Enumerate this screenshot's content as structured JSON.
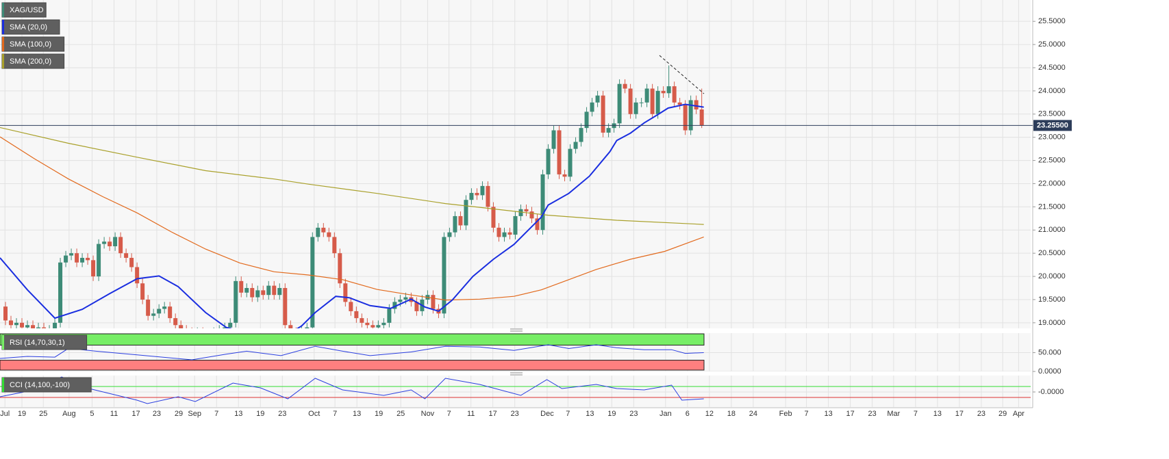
{
  "chart_data": [
    {
      "type": "candlestick",
      "name": "XAG/USD",
      "up_color": "#3d8b77",
      "down_color": "#d65b4a",
      "grid": true,
      "xlim": [
        0,
        188
      ],
      "ylim": [
        18.88,
        25.96
      ],
      "xticks": [
        {
          "value": 0.9,
          "label": "Jul"
        },
        {
          "value": 4,
          "label": "19"
        },
        {
          "value": 7.9,
          "label": "25"
        },
        {
          "value": 12.6,
          "label": "Aug"
        },
        {
          "value": 16.8,
          "label": "5"
        },
        {
          "value": 20.8,
          "label": "11"
        },
        {
          "value": 24.8,
          "label": "17"
        },
        {
          "value": 28.6,
          "label": "23"
        },
        {
          "value": 32.6,
          "label": "29"
        },
        {
          "value": 35.5,
          "label": "Sep"
        },
        {
          "value": 39.5,
          "label": "7"
        },
        {
          "value": 43.5,
          "label": "13"
        },
        {
          "value": 47.5,
          "label": "19"
        },
        {
          "value": 51.5,
          "label": "23"
        },
        {
          "value": 57.3,
          "label": "Oct"
        },
        {
          "value": 61.1,
          "label": "7"
        },
        {
          "value": 65.1,
          "label": "13"
        },
        {
          "value": 69.1,
          "label": "19"
        },
        {
          "value": 73.1,
          "label": "25"
        },
        {
          "value": 78,
          "label": "Nov"
        },
        {
          "value": 81.9,
          "label": "7"
        },
        {
          "value": 85.9,
          "label": "11"
        },
        {
          "value": 89.9,
          "label": "17"
        },
        {
          "value": 93.9,
          "label": "23"
        },
        {
          "value": 99.8,
          "label": "Dec"
        },
        {
          "value": 103.6,
          "label": "7"
        },
        {
          "value": 107.6,
          "label": "13"
        },
        {
          "value": 111.6,
          "label": "19"
        },
        {
          "value": 115.6,
          "label": "23"
        },
        {
          "value": 121.4,
          "label": "Jan"
        },
        {
          "value": 125.4,
          "label": "6"
        },
        {
          "value": 129.4,
          "label": "12"
        },
        {
          "value": 133.4,
          "label": "18"
        },
        {
          "value": 137.4,
          "label": "24"
        },
        {
          "value": 143.3,
          "label": "Feb"
        },
        {
          "value": 147.1,
          "label": "7"
        },
        {
          "value": 151.1,
          "label": "13"
        },
        {
          "value": 155.1,
          "label": "17"
        },
        {
          "value": 159.1,
          "label": "23"
        },
        {
          "value": 163,
          "label": "Mar"
        },
        {
          "value": 167,
          "label": "7"
        },
        {
          "value": 171,
          "label": "13"
        },
        {
          "value": 175,
          "label": "17"
        },
        {
          "value": 179,
          "label": "23"
        },
        {
          "value": 182.9,
          "label": "29"
        },
        {
          "value": 185.8,
          "label": "Apr"
        }
      ],
      "yticks": [
        {
          "value": 19,
          "label": "19.0000"
        },
        {
          "value": 19.5,
          "label": "19.5000"
        },
        {
          "value": 20,
          "label": "20.0000"
        },
        {
          "value": 20.5,
          "label": "20.5000"
        },
        {
          "value": 21,
          "label": "21.0000"
        },
        {
          "value": 21.5,
          "label": "21.5000"
        },
        {
          "value": 22,
          "label": "22.0000"
        },
        {
          "value": 22.5,
          "label": "22.5000"
        },
        {
          "value": 23,
          "label": "23.0000"
        },
        {
          "value": 23.5,
          "label": "23.5000"
        },
        {
          "value": 24,
          "label": "24.0000"
        },
        {
          "value": 24.5,
          "label": "24.5000"
        },
        {
          "value": 25,
          "label": "25.0000"
        },
        {
          "value": 25.5,
          "label": "25.5000"
        }
      ],
      "last_price": {
        "value": 23.255,
        "label": "23.25500"
      },
      "x": [
        1,
        2,
        3,
        4,
        5,
        6,
        7,
        8,
        9,
        10,
        11,
        12,
        13,
        14,
        15,
        16,
        17,
        18,
        19,
        20,
        21,
        22,
        23,
        24,
        25,
        26,
        27,
        28,
        29,
        30,
        31,
        32,
        33,
        34,
        35,
        36,
        37,
        38,
        39,
        40,
        41,
        42,
        43,
        44,
        45,
        46,
        47,
        48,
        49,
        50,
        51,
        52,
        53,
        54,
        55,
        56,
        57,
        58,
        59,
        60,
        61,
        62,
        63,
        64,
        65,
        66,
        67,
        68,
        69,
        70,
        71,
        72,
        73,
        74,
        75,
        76,
        77,
        78,
        79,
        80,
        81,
        82,
        83,
        84,
        85,
        86,
        87,
        88,
        89,
        90,
        91,
        92,
        93,
        94,
        95,
        96,
        97,
        98,
        99,
        100,
        101,
        102,
        103,
        104,
        105,
        106,
        107,
        108,
        109,
        110,
        111,
        112,
        113,
        114,
        115,
        116,
        117,
        118,
        119,
        120,
        121,
        122,
        123,
        124,
        125,
        126,
        127,
        128
      ],
      "open": [
        19.35,
        19.05,
        18.95,
        19.0,
        18.9,
        18.95,
        18.85,
        18.9,
        18.8,
        18.85,
        19.0,
        20.3,
        20.45,
        20.5,
        20.3,
        20.4,
        20.35,
        20.0,
        20.7,
        20.75,
        20.65,
        20.85,
        20.5,
        20.4,
        20.2,
        19.85,
        19.5,
        19.15,
        19.2,
        19.3,
        19.35,
        19.1,
        18.95,
        18.85,
        18.8,
        18.75,
        18.8,
        18.7,
        18.75,
        18.8,
        18.85,
        18.9,
        19.0,
        19.9,
        19.65,
        19.75,
        19.55,
        19.7,
        19.6,
        19.8,
        19.6,
        19.75,
        18.95,
        18.8,
        18.7,
        18.85,
        18.9,
        20.85,
        21.05,
        20.95,
        20.85,
        20.5,
        19.85,
        19.45,
        19.25,
        19.1,
        19.0,
        18.95,
        18.9,
        18.95,
        19.0,
        19.3,
        19.45,
        19.5,
        19.55,
        19.45,
        19.25,
        19.5,
        19.6,
        19.3,
        19.2,
        20.85,
        20.95,
        21.3,
        21.1,
        21.65,
        21.8,
        21.75,
        21.95,
        21.5,
        21.05,
        20.85,
        20.95,
        20.9,
        21.3,
        21.45,
        21.4,
        21.25,
        21.0,
        22.2,
        22.75,
        23.15,
        22.2,
        22.15,
        22.75,
        22.9,
        23.2,
        23.55,
        23.75,
        23.9,
        23.1,
        23.2,
        23.3,
        24.15,
        24.05,
        23.5,
        23.75,
        23.75,
        24.05,
        23.5,
        24.0,
        23.95,
        24.1,
        23.75,
        23.7,
        23.15,
        23.8,
        23.6
      ],
      "high": [
        19.45,
        19.15,
        19.1,
        19.1,
        19.05,
        19.05,
        19.0,
        19.0,
        18.95,
        19.1,
        20.4,
        20.55,
        20.6,
        20.6,
        20.5,
        20.5,
        20.45,
        20.8,
        20.85,
        20.85,
        20.95,
        20.95,
        20.6,
        20.5,
        20.3,
        19.95,
        19.6,
        19.3,
        19.4,
        19.45,
        19.45,
        19.2,
        19.05,
        18.95,
        18.9,
        18.9,
        18.9,
        18.85,
        18.9,
        18.95,
        19.0,
        19.1,
        20.0,
        20.0,
        19.85,
        19.85,
        19.8,
        19.8,
        19.9,
        19.9,
        19.85,
        19.85,
        19.05,
        18.9,
        18.95,
        19.0,
        20.95,
        21.15,
        21.15,
        21.05,
        20.95,
        20.6,
        19.95,
        19.55,
        19.35,
        19.2,
        19.1,
        19.05,
        19.05,
        19.1,
        19.4,
        19.55,
        19.6,
        19.65,
        19.65,
        19.55,
        19.6,
        19.7,
        19.7,
        19.4,
        20.95,
        21.05,
        21.4,
        21.4,
        21.75,
        21.9,
        21.9,
        22.05,
        22.05,
        21.6,
        21.15,
        21.05,
        21.05,
        21.4,
        21.55,
        21.55,
        21.5,
        21.35,
        22.3,
        22.85,
        23.25,
        23.25,
        22.3,
        22.85,
        23.0,
        23.3,
        23.65,
        23.85,
        24.0,
        24.0,
        23.3,
        23.4,
        24.25,
        24.25,
        24.15,
        23.85,
        23.85,
        24.15,
        24.15,
        24.1,
        24.1,
        24.55,
        24.2,
        23.85,
        23.8,
        23.9,
        23.9,
        24.05
      ],
      "low": [
        18.95,
        18.85,
        18.85,
        18.8,
        18.8,
        18.75,
        18.75,
        18.7,
        18.7,
        18.75,
        18.9,
        20.2,
        20.35,
        20.2,
        20.2,
        20.25,
        19.9,
        19.9,
        20.6,
        20.55,
        20.55,
        20.4,
        20.3,
        20.1,
        19.75,
        19.4,
        19.05,
        19.05,
        19.1,
        19.2,
        19.0,
        18.85,
        18.75,
        18.7,
        18.65,
        18.65,
        18.6,
        18.6,
        18.65,
        18.7,
        18.75,
        18.8,
        18.9,
        19.55,
        19.55,
        19.45,
        19.45,
        19.5,
        19.5,
        19.5,
        19.5,
        18.85,
        18.7,
        18.6,
        18.6,
        18.75,
        18.8,
        20.75,
        20.85,
        20.75,
        20.4,
        19.75,
        19.35,
        19.15,
        19.0,
        18.9,
        18.85,
        18.8,
        18.8,
        18.85,
        18.9,
        19.2,
        19.35,
        19.4,
        19.35,
        19.15,
        19.15,
        19.4,
        19.2,
        19.1,
        19.1,
        20.75,
        20.85,
        21.0,
        21.0,
        21.55,
        21.65,
        21.65,
        21.4,
        20.95,
        20.75,
        20.75,
        20.8,
        20.8,
        21.2,
        21.3,
        21.15,
        20.9,
        20.9,
        22.1,
        22.65,
        22.1,
        22.05,
        22.05,
        22.65,
        22.8,
        23.1,
        23.45,
        23.65,
        23.0,
        23.0,
        23.1,
        23.2,
        23.95,
        23.4,
        23.4,
        23.65,
        23.65,
        23.4,
        23.4,
        23.85,
        23.85,
        23.65,
        23.6,
        23.05,
        23.05,
        23.5,
        23.2
      ],
      "close": [
        19.05,
        18.95,
        19.0,
        18.9,
        18.95,
        18.85,
        18.9,
        18.8,
        18.85,
        19.0,
        20.3,
        20.45,
        20.5,
        20.3,
        20.4,
        20.35,
        20.0,
        20.7,
        20.75,
        20.65,
        20.85,
        20.5,
        20.4,
        20.2,
        19.85,
        19.5,
        19.15,
        19.2,
        19.3,
        19.35,
        19.1,
        18.95,
        18.85,
        18.8,
        18.75,
        18.8,
        18.7,
        18.75,
        18.8,
        18.85,
        18.9,
        19.0,
        19.9,
        19.65,
        19.75,
        19.55,
        19.7,
        19.6,
        19.8,
        19.6,
        19.75,
        18.95,
        18.8,
        18.7,
        18.85,
        18.9,
        20.85,
        21.05,
        20.95,
        20.85,
        20.5,
        19.85,
        19.45,
        19.25,
        19.1,
        19.0,
        18.95,
        18.9,
        18.95,
        19.0,
        19.3,
        19.45,
        19.5,
        19.55,
        19.45,
        19.25,
        19.5,
        19.6,
        19.3,
        19.2,
        20.85,
        20.95,
        21.3,
        21.1,
        21.65,
        21.8,
        21.75,
        21.95,
        21.5,
        21.05,
        20.85,
        20.95,
        20.9,
        21.3,
        21.45,
        21.4,
        21.25,
        21.0,
        22.2,
        22.75,
        23.15,
        22.2,
        22.15,
        22.75,
        22.9,
        23.2,
        23.55,
        23.75,
        23.9,
        23.1,
        23.2,
        23.3,
        24.15,
        24.05,
        23.5,
        23.75,
        23.75,
        24.05,
        23.5,
        24.0,
        23.95,
        24.1,
        23.75,
        23.7,
        23.15,
        23.8,
        23.6,
        23.255
      ],
      "overlays": [
        {
          "name": "SMA (20,0)",
          "color": "#1a2ee0",
          "x": [
            0,
            5,
            10,
            15,
            20,
            25,
            29,
            32.5,
            37.5,
            41.25,
            47.5,
            52.5,
            55,
            57.5,
            61.25,
            63.75,
            67.5,
            71.25,
            75,
            77.5,
            80,
            82.5,
            86.25,
            90,
            93.75,
            98.75,
            100,
            103.75,
            107.5,
            111.25,
            112.5,
            115,
            117.5,
            120,
            121.875,
            125,
            128.375
          ],
          "values": [
            20.4,
            19.71,
            19.1,
            19.29,
            19.63,
            19.95,
            20.01,
            19.78,
            19.22,
            18.9,
            18.7,
            18.75,
            18.93,
            19.22,
            19.57,
            19.54,
            19.37,
            19.31,
            19.51,
            19.34,
            19.25,
            19.49,
            20.0,
            20.37,
            20.69,
            21.28,
            21.54,
            21.79,
            22.16,
            22.69,
            22.93,
            23.09,
            23.31,
            23.49,
            23.63,
            23.71,
            23.65
          ]
        },
        {
          "name": "SMA (100,0)",
          "color": "#e2691c",
          "x": [
            0,
            6.25,
            12.5,
            18.75,
            25,
            31.25,
            37.5,
            43.75,
            50,
            56.25,
            62.5,
            68.75,
            75,
            81.25,
            87.5,
            93.75,
            98.75,
            103.75,
            108.75,
            115,
            121.25,
            128.375
          ],
          "values": [
            23.01,
            22.54,
            22.1,
            21.72,
            21.37,
            20.96,
            20.59,
            20.29,
            20.1,
            20.03,
            19.93,
            19.72,
            19.6,
            19.49,
            19.51,
            19.57,
            19.71,
            19.93,
            20.15,
            20.37,
            20.54,
            20.85
          ]
        },
        {
          "name": "SMA (200,0)",
          "color": "#a9a02a",
          "x": [
            0,
            12.5,
            25,
            37.5,
            50,
            56.25,
            68.75,
            81.25,
            87.5,
            100,
            112.5,
            128.375
          ],
          "values": [
            23.21,
            22.87,
            22.57,
            22.28,
            22.1,
            21.99,
            21.79,
            21.57,
            21.49,
            21.32,
            21.21,
            21.12
          ]
        }
      ]
    },
    {
      "type": "line",
      "grid": true,
      "ylim": [
        0,
        102
      ],
      "yticks": [
        {
          "value": 0,
          "label": "0.0000"
        },
        {
          "value": 50,
          "label": "50.000"
        }
      ],
      "levels_style": "band",
      "upper": 70,
      "lower": 30,
      "upper_color": "#77ee66",
      "lower_color": "#ff7f7f",
      "series": [
        {
          "name": "RSI (14,70,30,1)",
          "color": "#2a3ee0",
          "x": [
            0,
            5,
            10,
            12.5,
            17.5,
            25,
            35,
            41.25,
            45,
            51.25,
            57.5,
            62.5,
            67.5,
            75,
            81.25,
            87.5,
            93.75,
            100,
            103.75,
            108.75,
            112.5,
            117.5,
            122.5,
            125,
            128.375
          ],
          "values": [
            34.6,
            40,
            38,
            61.5,
            54,
            44,
            31,
            46,
            54,
            42,
            67,
            54,
            42,
            52,
            67,
            65,
            56,
            71,
            61,
            71,
            63,
            58,
            58,
            48,
            50
          ]
        }
      ]
    },
    {
      "type": "line",
      "grid": true,
      "ylim": [
        -275,
        300
      ],
      "yticks": [
        {
          "value": 0,
          "label": "-0.0000"
        }
      ],
      "levels_style": "line",
      "upper": 100,
      "lower": -100,
      "upper_color": "#33dd33",
      "lower_color": "#dd3333",
      "series": [
        {
          "name": "CCI (14,100,-100)",
          "color": "#2a3ee0",
          "x": [
            0,
            5,
            11.25,
            16.25,
            25,
            26.875,
            32.5,
            35.625,
            42.5,
            47.5,
            52.5,
            57.5,
            62.5,
            70,
            75,
            77.5,
            81.25,
            87.5,
            95,
            99.75,
            102.5,
            108.75,
            112.5,
            117.5,
            122.5,
            124.375,
            128.375
          ],
          "values": [
            -88,
            12,
            275,
            62,
            -150,
            -212,
            -88,
            -175,
            162,
            75,
            -125,
            250,
            38,
            -62,
            38,
            -125,
            250,
            138,
            -62,
            225,
            62,
            138,
            62,
            38,
            125,
            -150,
            -125
          ]
        }
      ]
    }
  ]
}
